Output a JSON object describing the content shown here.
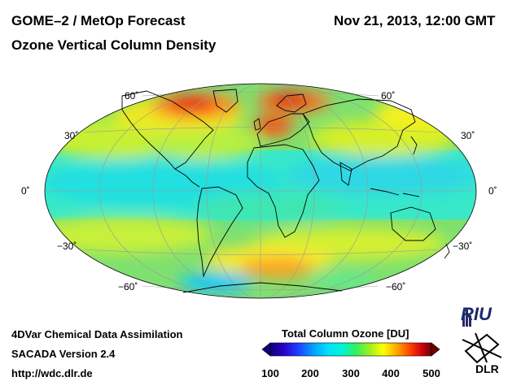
{
  "header": {
    "product": "GOME–2 / MetOp Forecast",
    "quantity": "Ozone Vertical Column Density",
    "datetime": "Nov 21, 2013, 12:00 GMT"
  },
  "map": {
    "projection": "Mollweide",
    "lat_labels": {
      "left": [
        "60˚",
        "30˚",
        "0˚",
        "−30˚",
        "−60˚"
      ],
      "right": [
        "60˚",
        "30˚",
        "0˚",
        "−30˚",
        "−60˚"
      ]
    }
  },
  "footer": {
    "line1": "4DVar Chemical Data Assimilation",
    "line2": "SACADA Version 2.4",
    "line3": "http://wdc.dlr.de"
  },
  "colorbar": {
    "title": "Total Column Ozone [DU]",
    "ticks": [
      "100",
      "200",
      "300",
      "400",
      "500"
    ],
    "colors": [
      "#10007a",
      "#2a00c8",
      "#1f3cff",
      "#00a4ff",
      "#00e1ff",
      "#00f5d0",
      "#30f060",
      "#a0f020",
      "#ffff00",
      "#ffa000",
      "#ff4000",
      "#d00010",
      "#700000"
    ]
  },
  "logos": {
    "riu": "RIU",
    "dlr": "DLR",
    "riu_icon": "riu-logo-icon",
    "dlr_icon": "dlr-logo-icon"
  }
}
